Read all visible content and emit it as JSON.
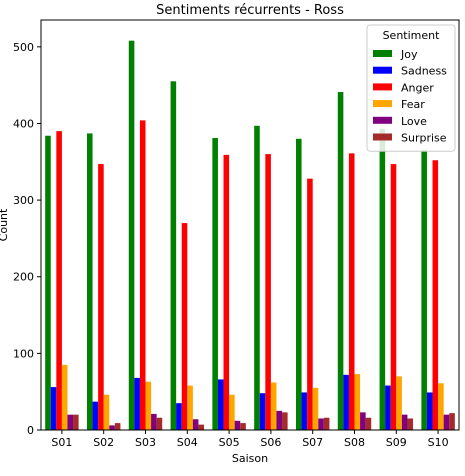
{
  "chart_data": {
    "type": "bar",
    "title": "Sentiments récurrents - Ross",
    "xlabel": "Saison",
    "ylabel": "Count",
    "categories": [
      "S01",
      "S02",
      "S03",
      "S04",
      "S05",
      "S06",
      "S07",
      "S08",
      "S09",
      "S10"
    ],
    "ylim": [
      0,
      535
    ],
    "yticks": [
      0,
      100,
      200,
      300,
      400,
      500
    ],
    "grid": false,
    "legend": {
      "title": "Sentiment",
      "placement": "top-right"
    },
    "series": [
      {
        "name": "Joy",
        "color": "#008000",
        "values": [
          384,
          387,
          508,
          455,
          381,
          397,
          380,
          441,
          393,
          365
        ]
      },
      {
        "name": "Sadness",
        "color": "#0000ff",
        "values": [
          56,
          37,
          68,
          35,
          66,
          48,
          49,
          72,
          58,
          49
        ]
      },
      {
        "name": "Anger",
        "color": "#ff0000",
        "values": [
          390,
          347,
          404,
          270,
          359,
          360,
          328,
          361,
          347,
          352
        ]
      },
      {
        "name": "Fear",
        "color": "#ffa500",
        "values": [
          85,
          46,
          63,
          58,
          46,
          62,
          55,
          73,
          70,
          61
        ]
      },
      {
        "name": "Love",
        "color": "#800080",
        "values": [
          20,
          6,
          21,
          14,
          12,
          25,
          15,
          23,
          20,
          20
        ]
      },
      {
        "name": "Surprise",
        "color": "#a52a2a",
        "values": [
          20,
          9,
          16,
          7,
          9,
          23,
          16,
          16,
          15,
          22
        ]
      }
    ]
  }
}
